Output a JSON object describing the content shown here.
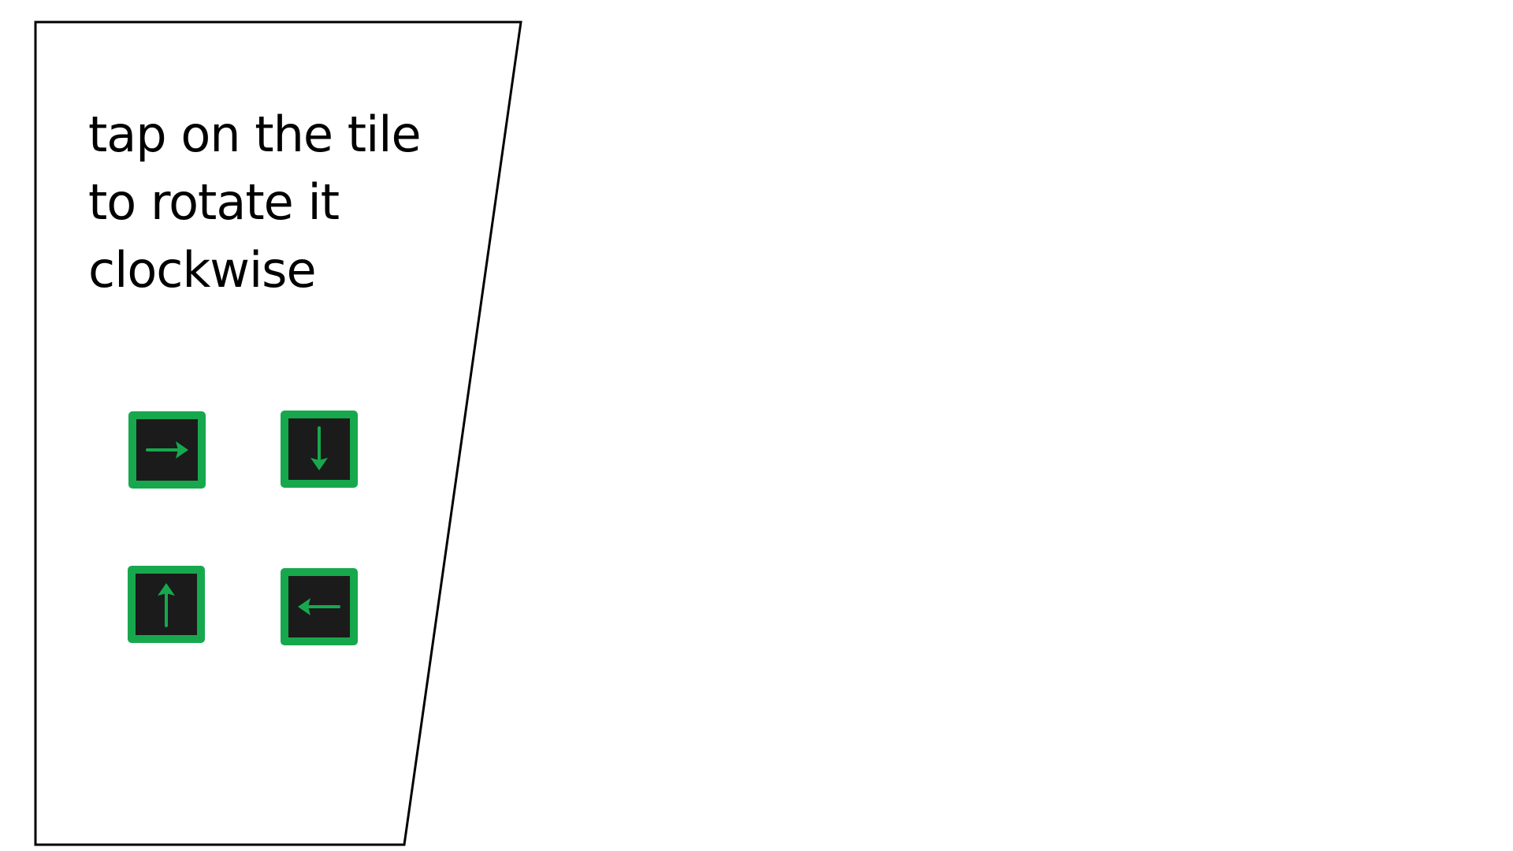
{
  "instruction": {
    "lines": [
      "tap on the tile",
      "to rotate it",
      "clockwise"
    ]
  },
  "colors": {
    "tile_border": "#17a84e",
    "tile_fill": "#1b1b1b",
    "arrow": "#17a84e",
    "panel_outline": "#000000",
    "background": "#ffffff"
  },
  "tiles": [
    {
      "icon": "arrow-right-icon",
      "direction": "right"
    },
    {
      "icon": "arrow-down-icon",
      "direction": "down"
    },
    {
      "icon": "arrow-up-icon",
      "direction": "up"
    },
    {
      "icon": "arrow-left-icon",
      "direction": "left"
    }
  ]
}
